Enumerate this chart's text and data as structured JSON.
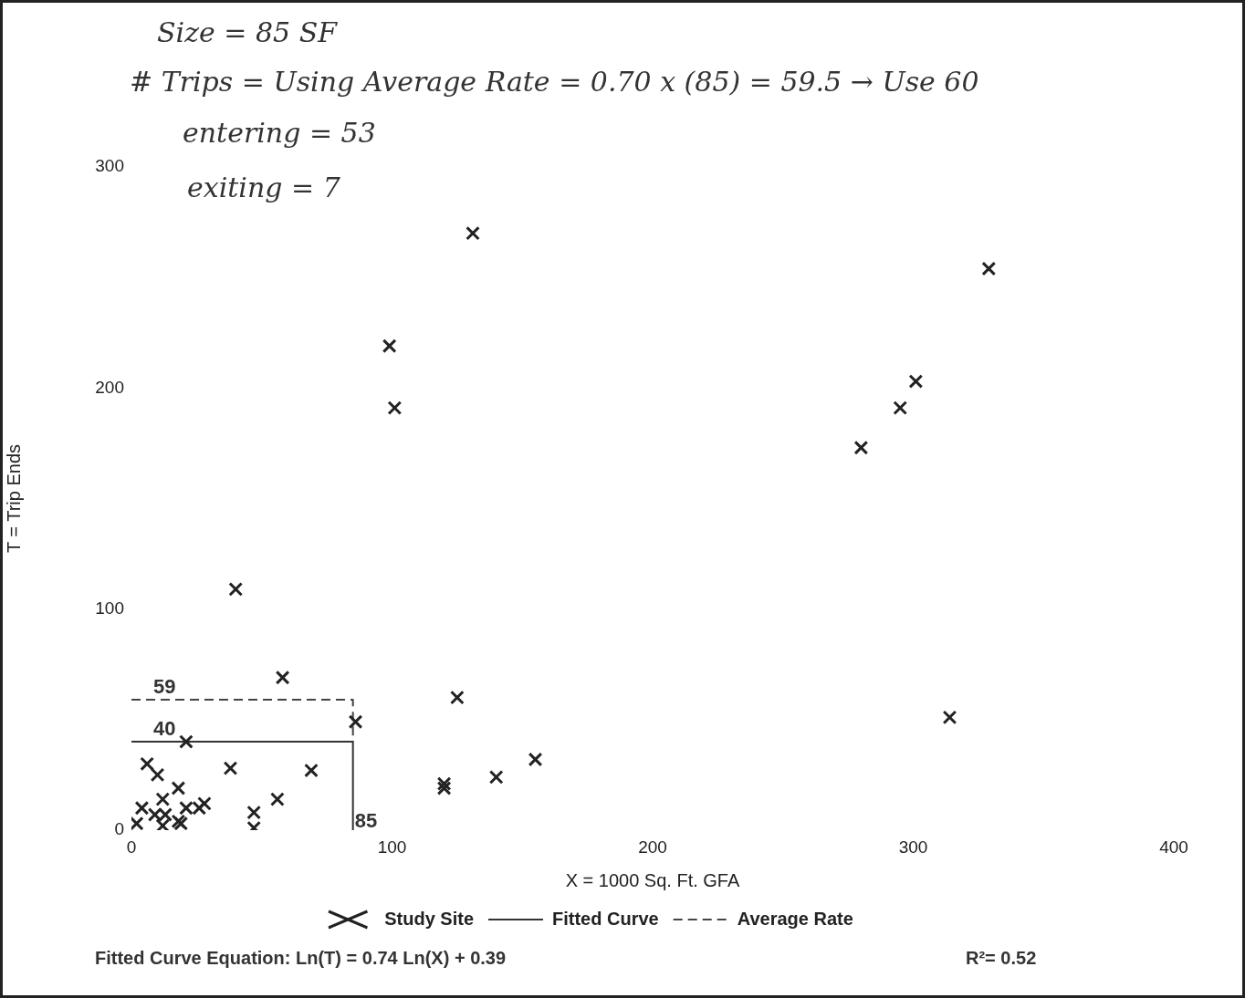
{
  "chart_data": {
    "type": "scatter",
    "xlabel": "X = 1000 Sq. Ft. GFA",
    "ylabel": "T = Trip Ends",
    "xlim": [
      0,
      400
    ],
    "xticks": [
      0,
      100,
      200,
      300,
      400
    ],
    "ylim": [
      0,
      300
    ],
    "yticks": [
      0,
      100,
      200,
      300
    ],
    "grid": false,
    "legend": "bottom",
    "series": [
      {
        "name": "Study Site",
        "color": "#222222",
        "marker": "cross",
        "x": [
          131,
          99,
          101,
          329,
          301,
          295,
          280,
          40,
          58,
          125,
          86,
          21,
          314,
          38,
          69,
          155,
          140,
          120,
          120,
          6,
          10,
          18,
          12,
          28,
          26,
          21,
          4,
          9,
          13,
          18,
          2,
          12,
          19,
          47,
          56,
          47
        ],
        "values": [
          270,
          219,
          191,
          254,
          203,
          191,
          173,
          109,
          69,
          60,
          49,
          40,
          51,
          28,
          27,
          32,
          24,
          21,
          19,
          30,
          25,
          19,
          14,
          12,
          10,
          10,
          10,
          7,
          7,
          4,
          3,
          2,
          3,
          8,
          14,
          1
        ]
      },
      {
        "name": "Fitted Curve",
        "type": "line",
        "color": "#333333",
        "line_style": "solid",
        "x": [
          0,
          85,
          85
        ],
        "values": [
          40,
          40,
          0
        ]
      },
      {
        "name": "Average Rate",
        "type": "line",
        "color": "#444444",
        "line_style": "dashed",
        "x": [
          0,
          85,
          85
        ],
        "values": [
          59,
          59,
          40
        ]
      }
    ],
    "annotations": [
      "Size = 85 SF",
      "# Trips = Using Average Rate = 0.70 x (85) = 59.5 → Use 60",
      "entering = 53",
      "exiting = 7",
      "Fitted Curve Equation: Ln(T) = 0.74 Ln(X) + 0.39",
      "R²= 0.52",
      {
        "text": "59",
        "y": 59
      },
      {
        "text": "40",
        "y": 40
      },
      {
        "text": "85",
        "x": 85
      }
    ]
  }
}
